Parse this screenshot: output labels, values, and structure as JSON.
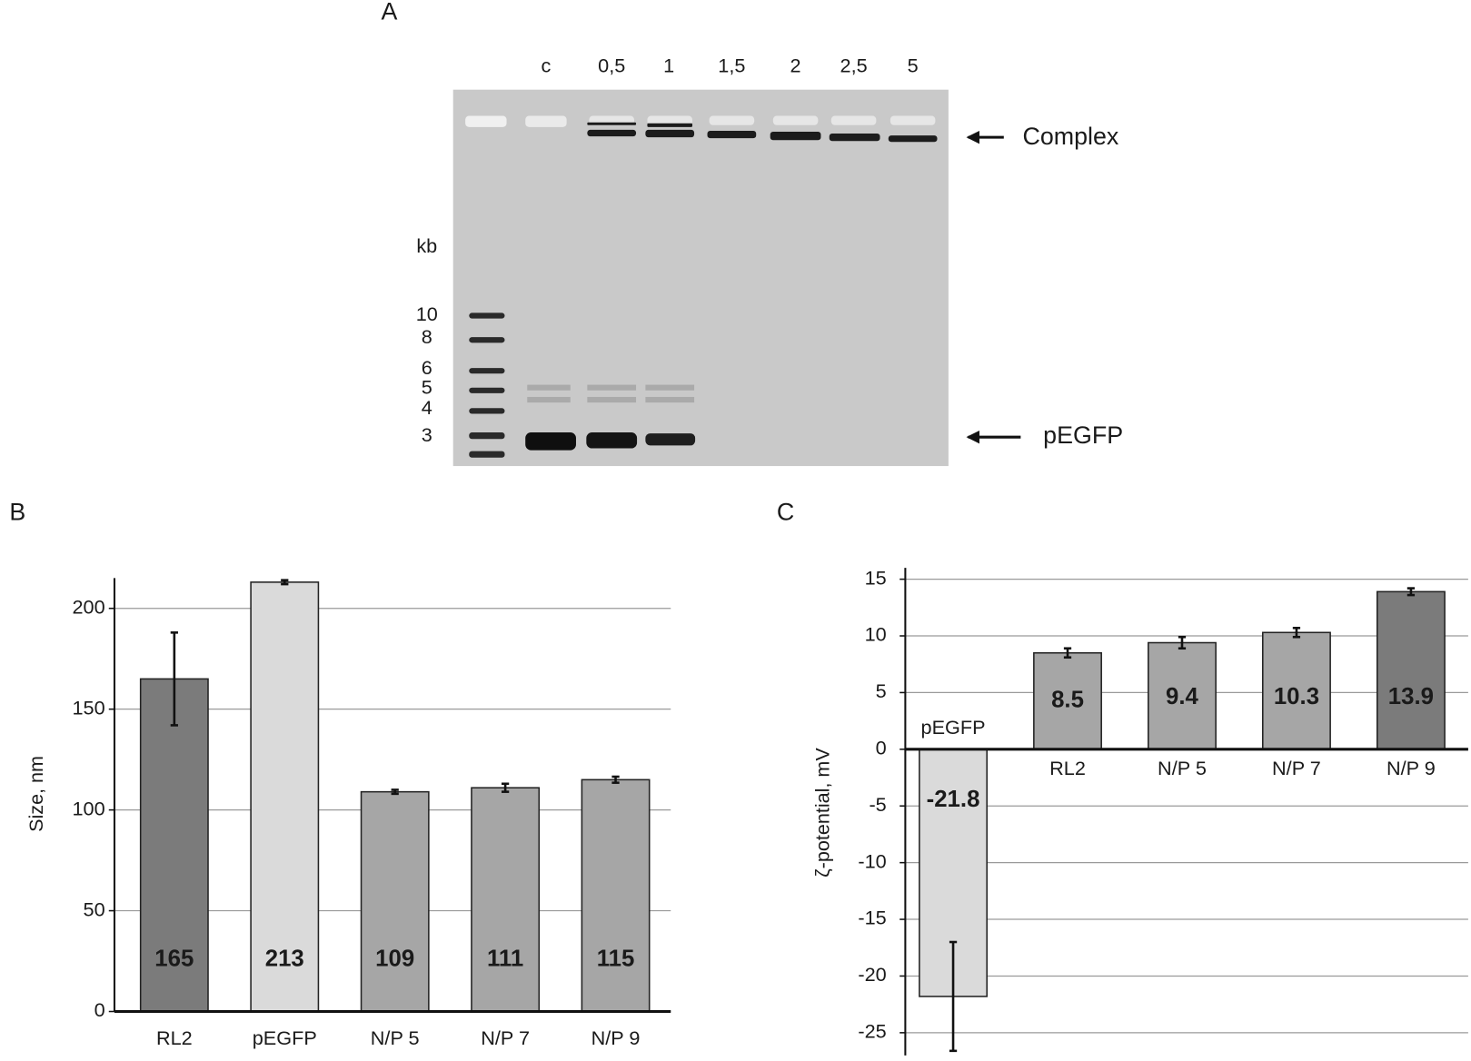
{
  "panel_a": {
    "panel_label": "A",
    "lanes": [
      "c",
      "0,5",
      "1",
      "1,5",
      "2",
      "2,5",
      "5"
    ],
    "marker_unit": "kb",
    "markers": [
      "10",
      "8",
      "6",
      "5",
      "4",
      "3"
    ],
    "annotations": [
      "Complex",
      "pEGFP"
    ]
  },
  "chart_data": [
    {
      "type": "bar",
      "panel_label": "B",
      "ylabel": "Size, nm",
      "categories": [
        "RL2",
        "pEGFP",
        "N/P 5",
        "N/P 7",
        "N/P 9"
      ],
      "values": [
        165,
        213,
        109,
        111,
        115
      ],
      "errors": [
        23,
        1,
        1,
        2,
        1.5
      ],
      "colors": [
        "#7b7b7b",
        "#dadada",
        "#a6a6a6",
        "#a6a6a6",
        "#a6a6a6"
      ],
      "ylim": [
        0,
        215
      ],
      "yticks": [
        0,
        50,
        100,
        150,
        200
      ],
      "grid": true
    },
    {
      "type": "bar",
      "panel_label": "C",
      "ylabel": "ζ-potential, mV",
      "categories": [
        "pEGFP",
        "RL2",
        "N/P 5",
        "N/P 7",
        "N/P 9"
      ],
      "values": [
        -21.8,
        8.5,
        9.4,
        10.3,
        13.9
      ],
      "errors": [
        4.8,
        0.4,
        0.5,
        0.4,
        0.3
      ],
      "colors": [
        "#dadada",
        "#a6a6a6",
        "#a6a6a6",
        "#a6a6a6",
        "#7b7b7b"
      ],
      "ylim": [
        -27,
        16
      ],
      "yticks": [
        -25,
        -20,
        -15,
        -10,
        -5,
        0,
        5,
        10,
        15
      ],
      "grid": true
    }
  ]
}
